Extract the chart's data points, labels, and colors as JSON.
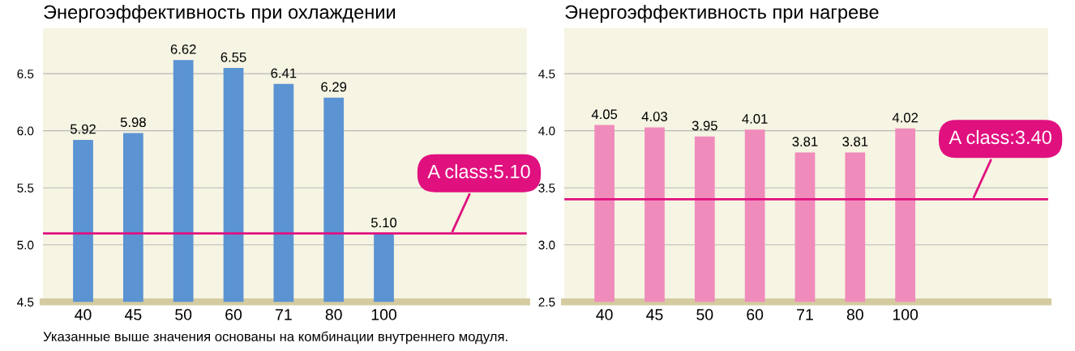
{
  "chart_data": [
    {
      "type": "bar",
      "title": "Энергоэффективность при охлаждении",
      "categories": [
        "40",
        "45",
        "50",
        "60",
        "71",
        "80",
        "100"
      ],
      "values": [
        5.92,
        5.98,
        6.62,
        6.55,
        6.41,
        6.29,
        5.1
      ],
      "color": "#5b93d3",
      "value_labels": [
        "5.92",
        "5.98",
        "6.62",
        "6.55",
        "6.41",
        "6.29",
        "5.10"
      ],
      "ylim": [
        4.5,
        6.9
      ],
      "yticks": [
        {
          "value": 4.5,
          "label": "4.5"
        },
        {
          "value": 5.0,
          "label": "5.0"
        },
        {
          "value": 5.5,
          "label": "5.5"
        },
        {
          "value": 6.0,
          "label": "6.0"
        },
        {
          "value": 6.5,
          "label": "6.5"
        }
      ],
      "grid": "y",
      "ref_lines": [
        {
          "axis": "y",
          "value": 5.1,
          "label": "A class:5.10",
          "color": "#e0107f"
        }
      ]
    },
    {
      "type": "bar",
      "title": "Энергоэффективность при нагреве",
      "categories": [
        "40",
        "45",
        "50",
        "60",
        "71",
        "80",
        "100"
      ],
      "values": [
        4.05,
        4.03,
        3.95,
        4.01,
        3.81,
        3.81,
        4.02
      ],
      "color": "#f08cbc",
      "value_labels": [
        "4.05",
        "4.03",
        "3.95",
        "4.01",
        "3.81",
        "3.81",
        "4.02"
      ],
      "ylim": [
        2.5,
        4.9
      ],
      "yticks": [
        {
          "value": 2.5,
          "label": "2.5"
        },
        {
          "value": 3.0,
          "label": "3.0"
        },
        {
          "value": 3.5,
          "label": "3.5"
        },
        {
          "value": 4.0,
          "label": "4.0"
        },
        {
          "value": 4.5,
          "label": "4.5"
        }
      ],
      "grid": "y",
      "ref_lines": [
        {
          "axis": "y",
          "value": 3.4,
          "label": "A class:3.40",
          "color": "#e0107f"
        }
      ],
      "annotations": [
        "Указанные выше значения основаны на комбинации внутреннего модуля."
      ]
    }
  ]
}
